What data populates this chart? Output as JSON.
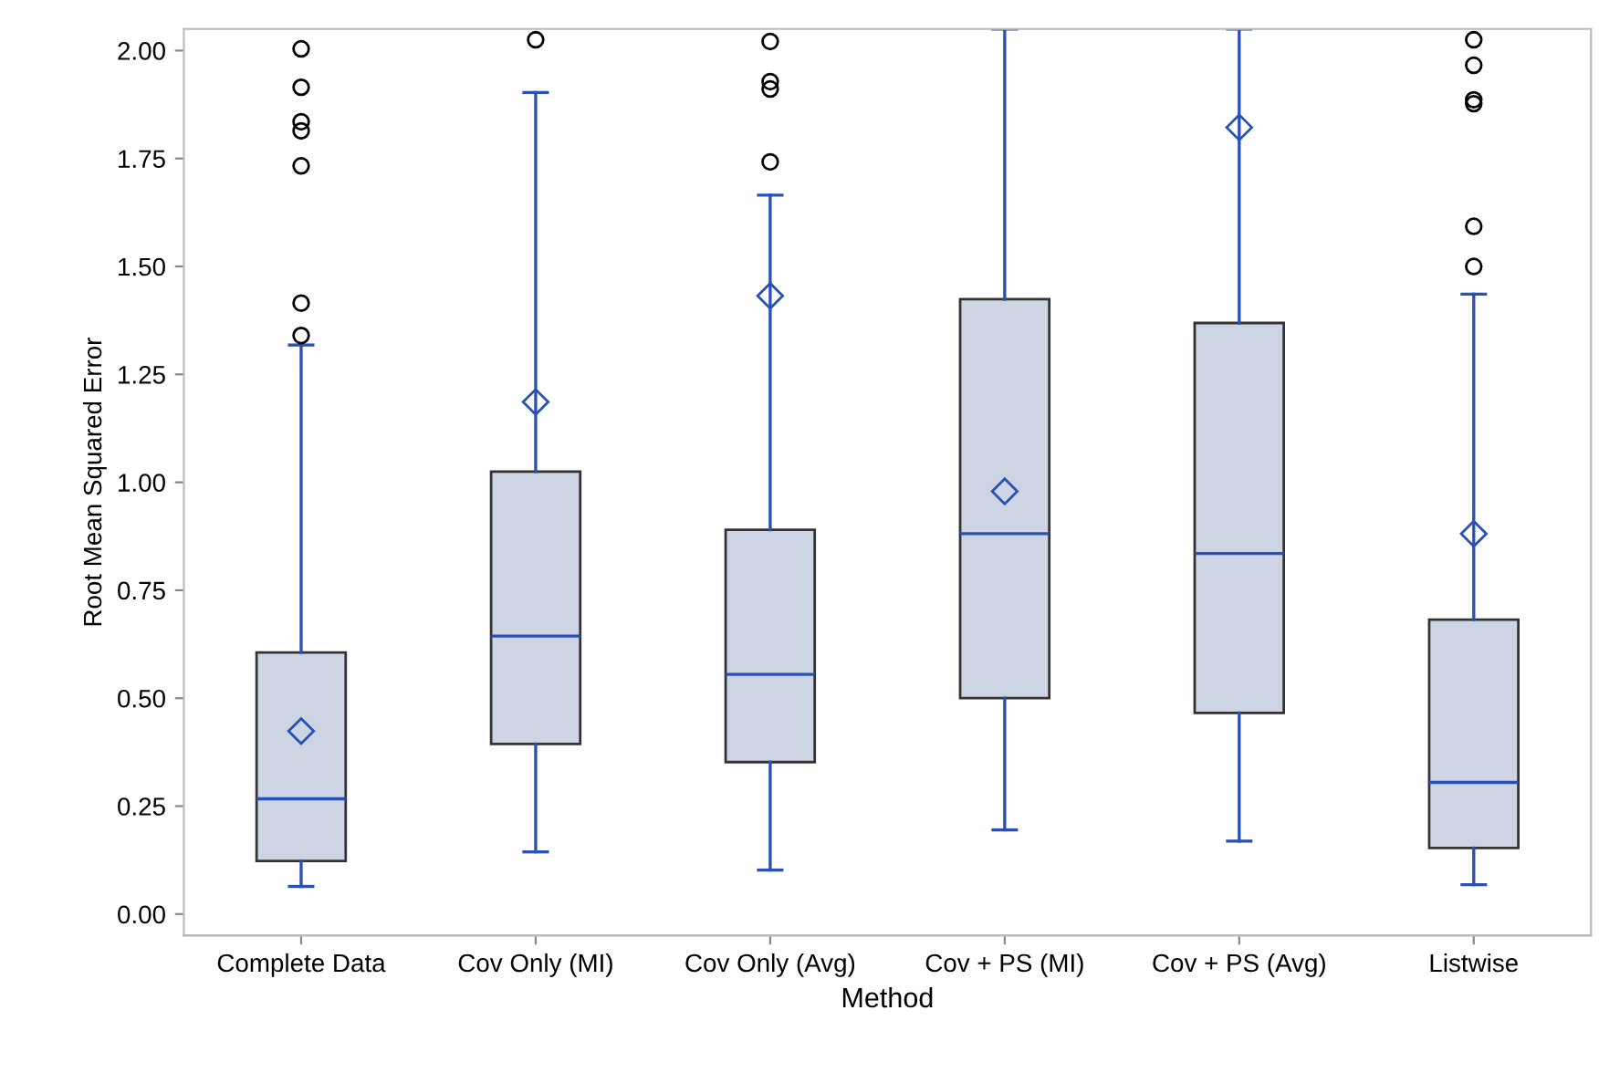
{
  "chart_data": {
    "type": "box",
    "xlabel": "Method",
    "ylabel": "Root Mean Squared Error",
    "categories": [
      "Complete Data",
      "Cov Only (MI)",
      "Cov Only (Avg)",
      "Cov + PS (MI)",
      "Cov + PS (Avg)",
      "Listwise"
    ],
    "ylim": [
      -0.05,
      2.05
    ],
    "yticks": [
      {
        "value": 0,
        "label": "0.00"
      },
      {
        "value": 0.25,
        "label": "0.25"
      },
      {
        "value": 0.5,
        "label": "0.50"
      },
      {
        "value": 0.75,
        "label": "0.75"
      },
      {
        "value": 1,
        "label": "1.00"
      },
      {
        "value": 1.25,
        "label": "1.25"
      },
      {
        "value": 1.5,
        "label": "1.50"
      },
      {
        "value": 1.75,
        "label": "1.75"
      },
      {
        "value": 2,
        "label": "2.00"
      }
    ],
    "grid": false,
    "series": [
      {
        "color": "#cdd5e5",
        "boxes": [
          {
            "low": 0.064,
            "q1": 0.123,
            "median": 0.267,
            "q3": 0.606,
            "high": 1.318,
            "mean": 0.424,
            "outliers": [
              1.34,
              1.415,
              1.733,
              1.814,
              1.835,
              1.915,
              2.004
            ]
          },
          {
            "low": 0.144,
            "q1": 0.394,
            "median": 0.644,
            "q3": 1.025,
            "high": 1.903,
            "mean": 1.186,
            "outliers": [
              2.025
            ]
          },
          {
            "low": 0.102,
            "q1": 0.352,
            "median": 0.555,
            "q3": 0.89,
            "high": 1.665,
            "mean": 1.432,
            "outliers": [
              1.742,
              1.911,
              1.928,
              2.021
            ]
          },
          {
            "low": 0.195,
            "q1": 0.5,
            "median": 0.881,
            "q3": 1.424,
            "high": 2.05,
            "mean": 0.979
          },
          {
            "low": 0.169,
            "q1": 0.466,
            "median": 0.835,
            "q3": 1.369,
            "high": 2.05,
            "mean": 1.822
          },
          {
            "low": 0.068,
            "q1": 0.153,
            "median": 0.305,
            "q3": 0.682,
            "high": 1.436,
            "mean": 0.881,
            "outliers": [
              1.5,
              1.593,
              1.877,
              1.886,
              1.966,
              2.025
            ]
          }
        ]
      }
    ]
  }
}
